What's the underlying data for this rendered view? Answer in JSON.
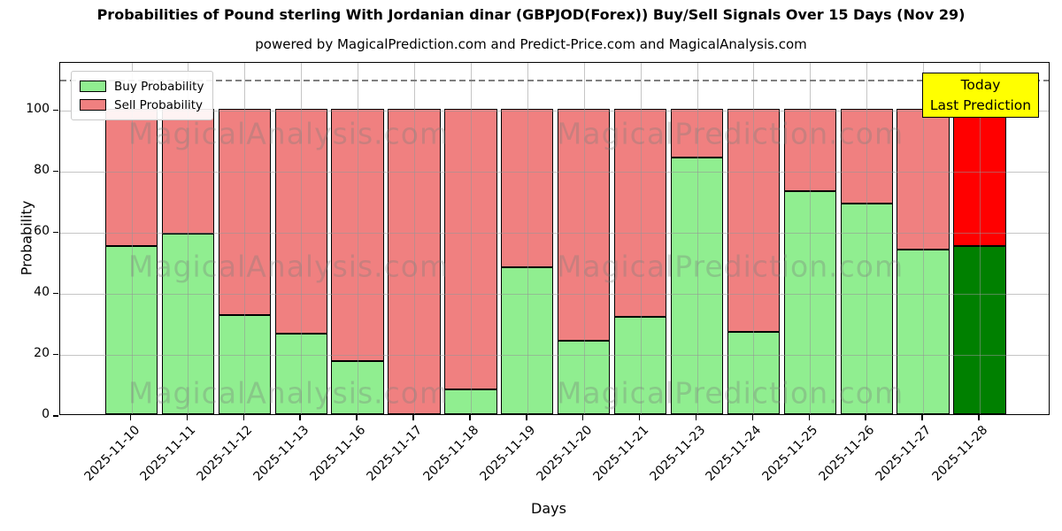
{
  "page": {
    "title": "Probabilities of Pound sterling With Jordanian dinar (GBPJOD(Forex)) Buy/Sell Signals Over 15 Days (Nov 29)",
    "subtitle": "powered by MagicalPrediction.com and Predict-Price.com and MagicalAnalysis.com"
  },
  "axes": {
    "ylabel": "Probability",
    "xlabel": "Days",
    "yticks": [
      0,
      20,
      40,
      60,
      80,
      100
    ]
  },
  "legend": [
    {
      "label": "Buy Probability",
      "color": "#90EE90"
    },
    {
      "label": "Sell Probability",
      "color": "#F08080"
    }
  ],
  "annotation": {
    "line1": "Today",
    "line2": "Last Prediction",
    "bg_color": "#FFFF00"
  },
  "watermarks": {
    "left_text": "MagicalAnalysis.com",
    "right_text": "MagicalPrediction.com"
  },
  "chart_data": {
    "type": "bar",
    "stacked": true,
    "title": "Probabilities of Pound sterling With Jordanian dinar (GBPJOD(Forex)) Buy/Sell Signals Over 15 Days (Nov 29)",
    "xlabel": "Days",
    "ylabel": "Probability",
    "categories": [
      "2025-11-10",
      "2025-11-11",
      "2025-11-12",
      "2025-11-13",
      "2025-11-16",
      "2025-11-17",
      "2025-11-18",
      "2025-11-19",
      "2025-11-20",
      "2025-11-21",
      "2025-11-23",
      "2025-11-24",
      "2025-11-25",
      "2025-11-26",
      "2025-11-27",
      "2025-11-28"
    ],
    "series": [
      {
        "name": "Buy Probability",
        "color": "#90EE90",
        "today_color": "#008000",
        "values": [
          55,
          59,
          32.5,
          26.5,
          17.5,
          0,
          8,
          48,
          24,
          32,
          84,
          27,
          73,
          69,
          54,
          55
        ]
      },
      {
        "name": "Sell Probability",
        "color": "#F08080",
        "today_color": "#FF0000",
        "values": [
          45,
          41,
          67.5,
          73.5,
          82.5,
          100,
          92,
          52,
          76,
          68,
          16,
          73,
          27,
          31,
          46,
          45
        ]
      }
    ],
    "today_index": 15,
    "ylim": [
      0,
      115.6
    ],
    "dashed_line_y": 110,
    "grid": true,
    "grid_color": "#b0b0b0",
    "dashed_line_color": "#7f7f7f",
    "legend_position": "upper left"
  }
}
